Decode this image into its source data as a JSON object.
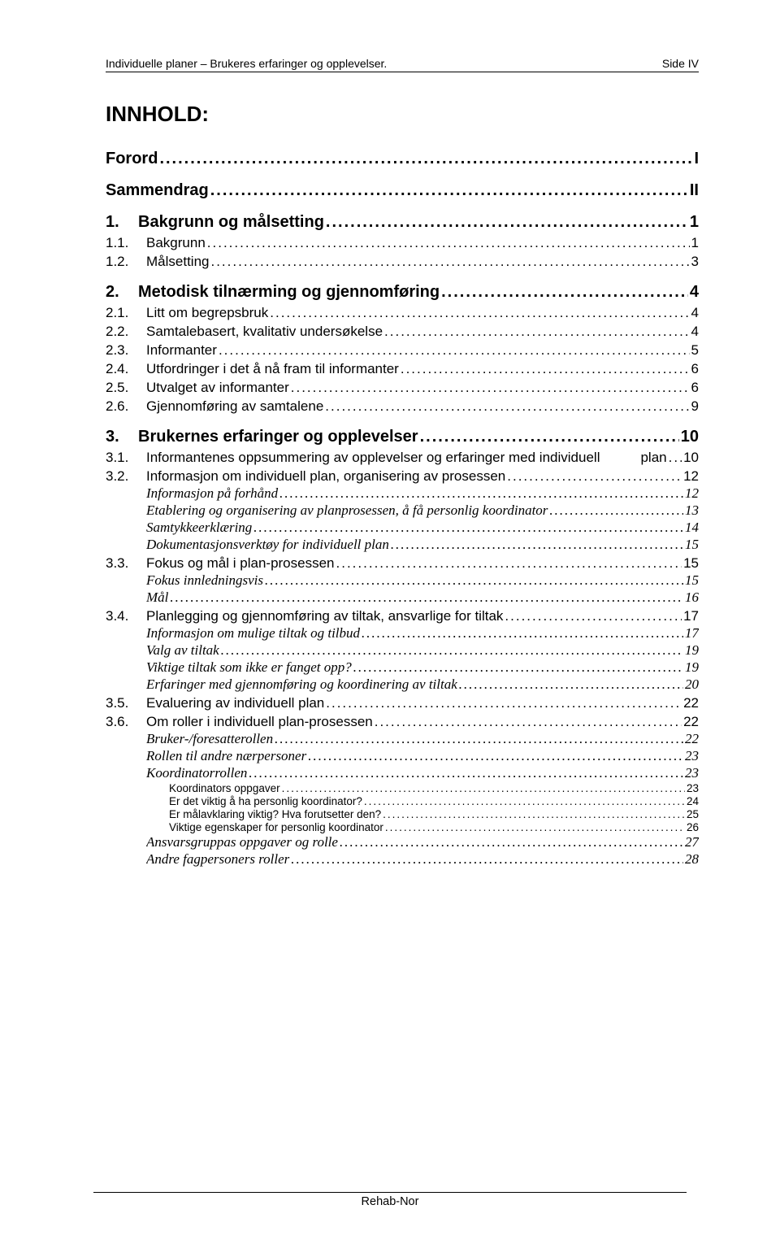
{
  "header": {
    "left": "Individuelle planer – Brukeres erfaringer og opplevelser.",
    "right": "Side IV"
  },
  "title": "INNHOLD:",
  "entries": [
    {
      "level": "top",
      "num": "",
      "text": "Forord",
      "page": "I"
    },
    {
      "level": "top",
      "num": "",
      "text": "Sammendrag",
      "page": "II"
    },
    {
      "level": 1,
      "num": "1.",
      "text": "Bakgrunn og målsetting",
      "page": "1"
    },
    {
      "level": 2,
      "num": "1.1.",
      "text": "Bakgrunn",
      "page": "1"
    },
    {
      "level": 2,
      "num": "1.2.",
      "text": "Målsetting",
      "page": "3"
    },
    {
      "level": 1,
      "num": "2.",
      "text": "Metodisk tilnærming og gjennomføring",
      "page": "4"
    },
    {
      "level": 2,
      "num": "2.1.",
      "text": "Litt om begrepsbruk",
      "page": "4"
    },
    {
      "level": 2,
      "num": "2.2.",
      "text": "Samtalebasert, kvalitativ undersøkelse",
      "page": "4"
    },
    {
      "level": 2,
      "num": "2.3.",
      "text": "Informanter",
      "page": "5"
    },
    {
      "level": 2,
      "num": "2.4.",
      "text": "Utfordringer i det å nå fram til informanter",
      "page": "6"
    },
    {
      "level": 2,
      "num": "2.5.",
      "text": "Utvalget av informanter",
      "page": "6"
    },
    {
      "level": 2,
      "num": "2.6.",
      "text": "Gjennomføring av samtalene",
      "page": "9"
    },
    {
      "level": 1,
      "num": "3.",
      "text": "Brukernes erfaringer og opplevelser",
      "page": "10"
    },
    {
      "level": 2,
      "num": "3.1.",
      "text_l1": "Informantenes oppsummering av opplevelser og erfaringer med individuell",
      "text_l2": "plan",
      "page": "10",
      "twoline": true
    },
    {
      "level": 2,
      "num": "3.2.",
      "text": "Informasjon om individuell plan, organisering av prosessen",
      "page": "12"
    },
    {
      "level": 3,
      "text": "Informasjon på forhånd",
      "page": "12"
    },
    {
      "level": 3,
      "text": "Etablering og organisering av planprosessen, å få personlig koordinator",
      "page": "13"
    },
    {
      "level": 3,
      "text": "Samtykkeerklæring",
      "page": "14"
    },
    {
      "level": 3,
      "text": "Dokumentasjonsverktøy for individuell plan",
      "page": "15"
    },
    {
      "level": 2,
      "num": "3.3.",
      "text": "Fokus og mål i plan-prosessen",
      "page": "15"
    },
    {
      "level": 3,
      "text": "Fokus innledningsvis",
      "page": "15"
    },
    {
      "level": 3,
      "text": "Mål",
      "page": "16"
    },
    {
      "level": 2,
      "num": "3.4.",
      "text": "Planlegging og gjennomføring av tiltak, ansvarlige for tiltak",
      "page": "17"
    },
    {
      "level": 3,
      "text": "Informasjon om mulige tiltak og tilbud",
      "page": "17"
    },
    {
      "level": 3,
      "text": "Valg av tiltak",
      "page": "19"
    },
    {
      "level": 3,
      "text": "Viktige tiltak som ikke er fanget opp?",
      "page": "19"
    },
    {
      "level": 3,
      "text": "Erfaringer med gjennomføring og koordinering av tiltak",
      "page": "20"
    },
    {
      "level": 2,
      "num": "3.5.",
      "text": "Evaluering av individuell plan",
      "page": "22"
    },
    {
      "level": 2,
      "num": "3.6.",
      "text": "Om roller i individuell plan-prosessen",
      "page": "22"
    },
    {
      "level": 3,
      "text": "Bruker-/foresatterollen",
      "page": "22"
    },
    {
      "level": 3,
      "text": "Rollen til andre nærpersoner",
      "page": "23"
    },
    {
      "level": 3,
      "text": "Koordinatorrollen",
      "page": "23"
    },
    {
      "level": 4,
      "text": "Koordinators oppgaver",
      "page": "23"
    },
    {
      "level": 4,
      "text": "Er det viktig å ha personlig koordinator?",
      "page": "24"
    },
    {
      "level": 4,
      "text": "Er målavklaring viktig?  Hva forutsetter den?",
      "page": "25"
    },
    {
      "level": 4,
      "text": "Viktige egenskaper for personlig koordinator",
      "page": "26"
    },
    {
      "level": 3,
      "text": "Ansvarsgruppas oppgaver og rolle",
      "page": "27"
    },
    {
      "level": 3,
      "text": "Andre fagpersoners roller",
      "page": "28"
    }
  ],
  "footer": "Rehab-Nor"
}
